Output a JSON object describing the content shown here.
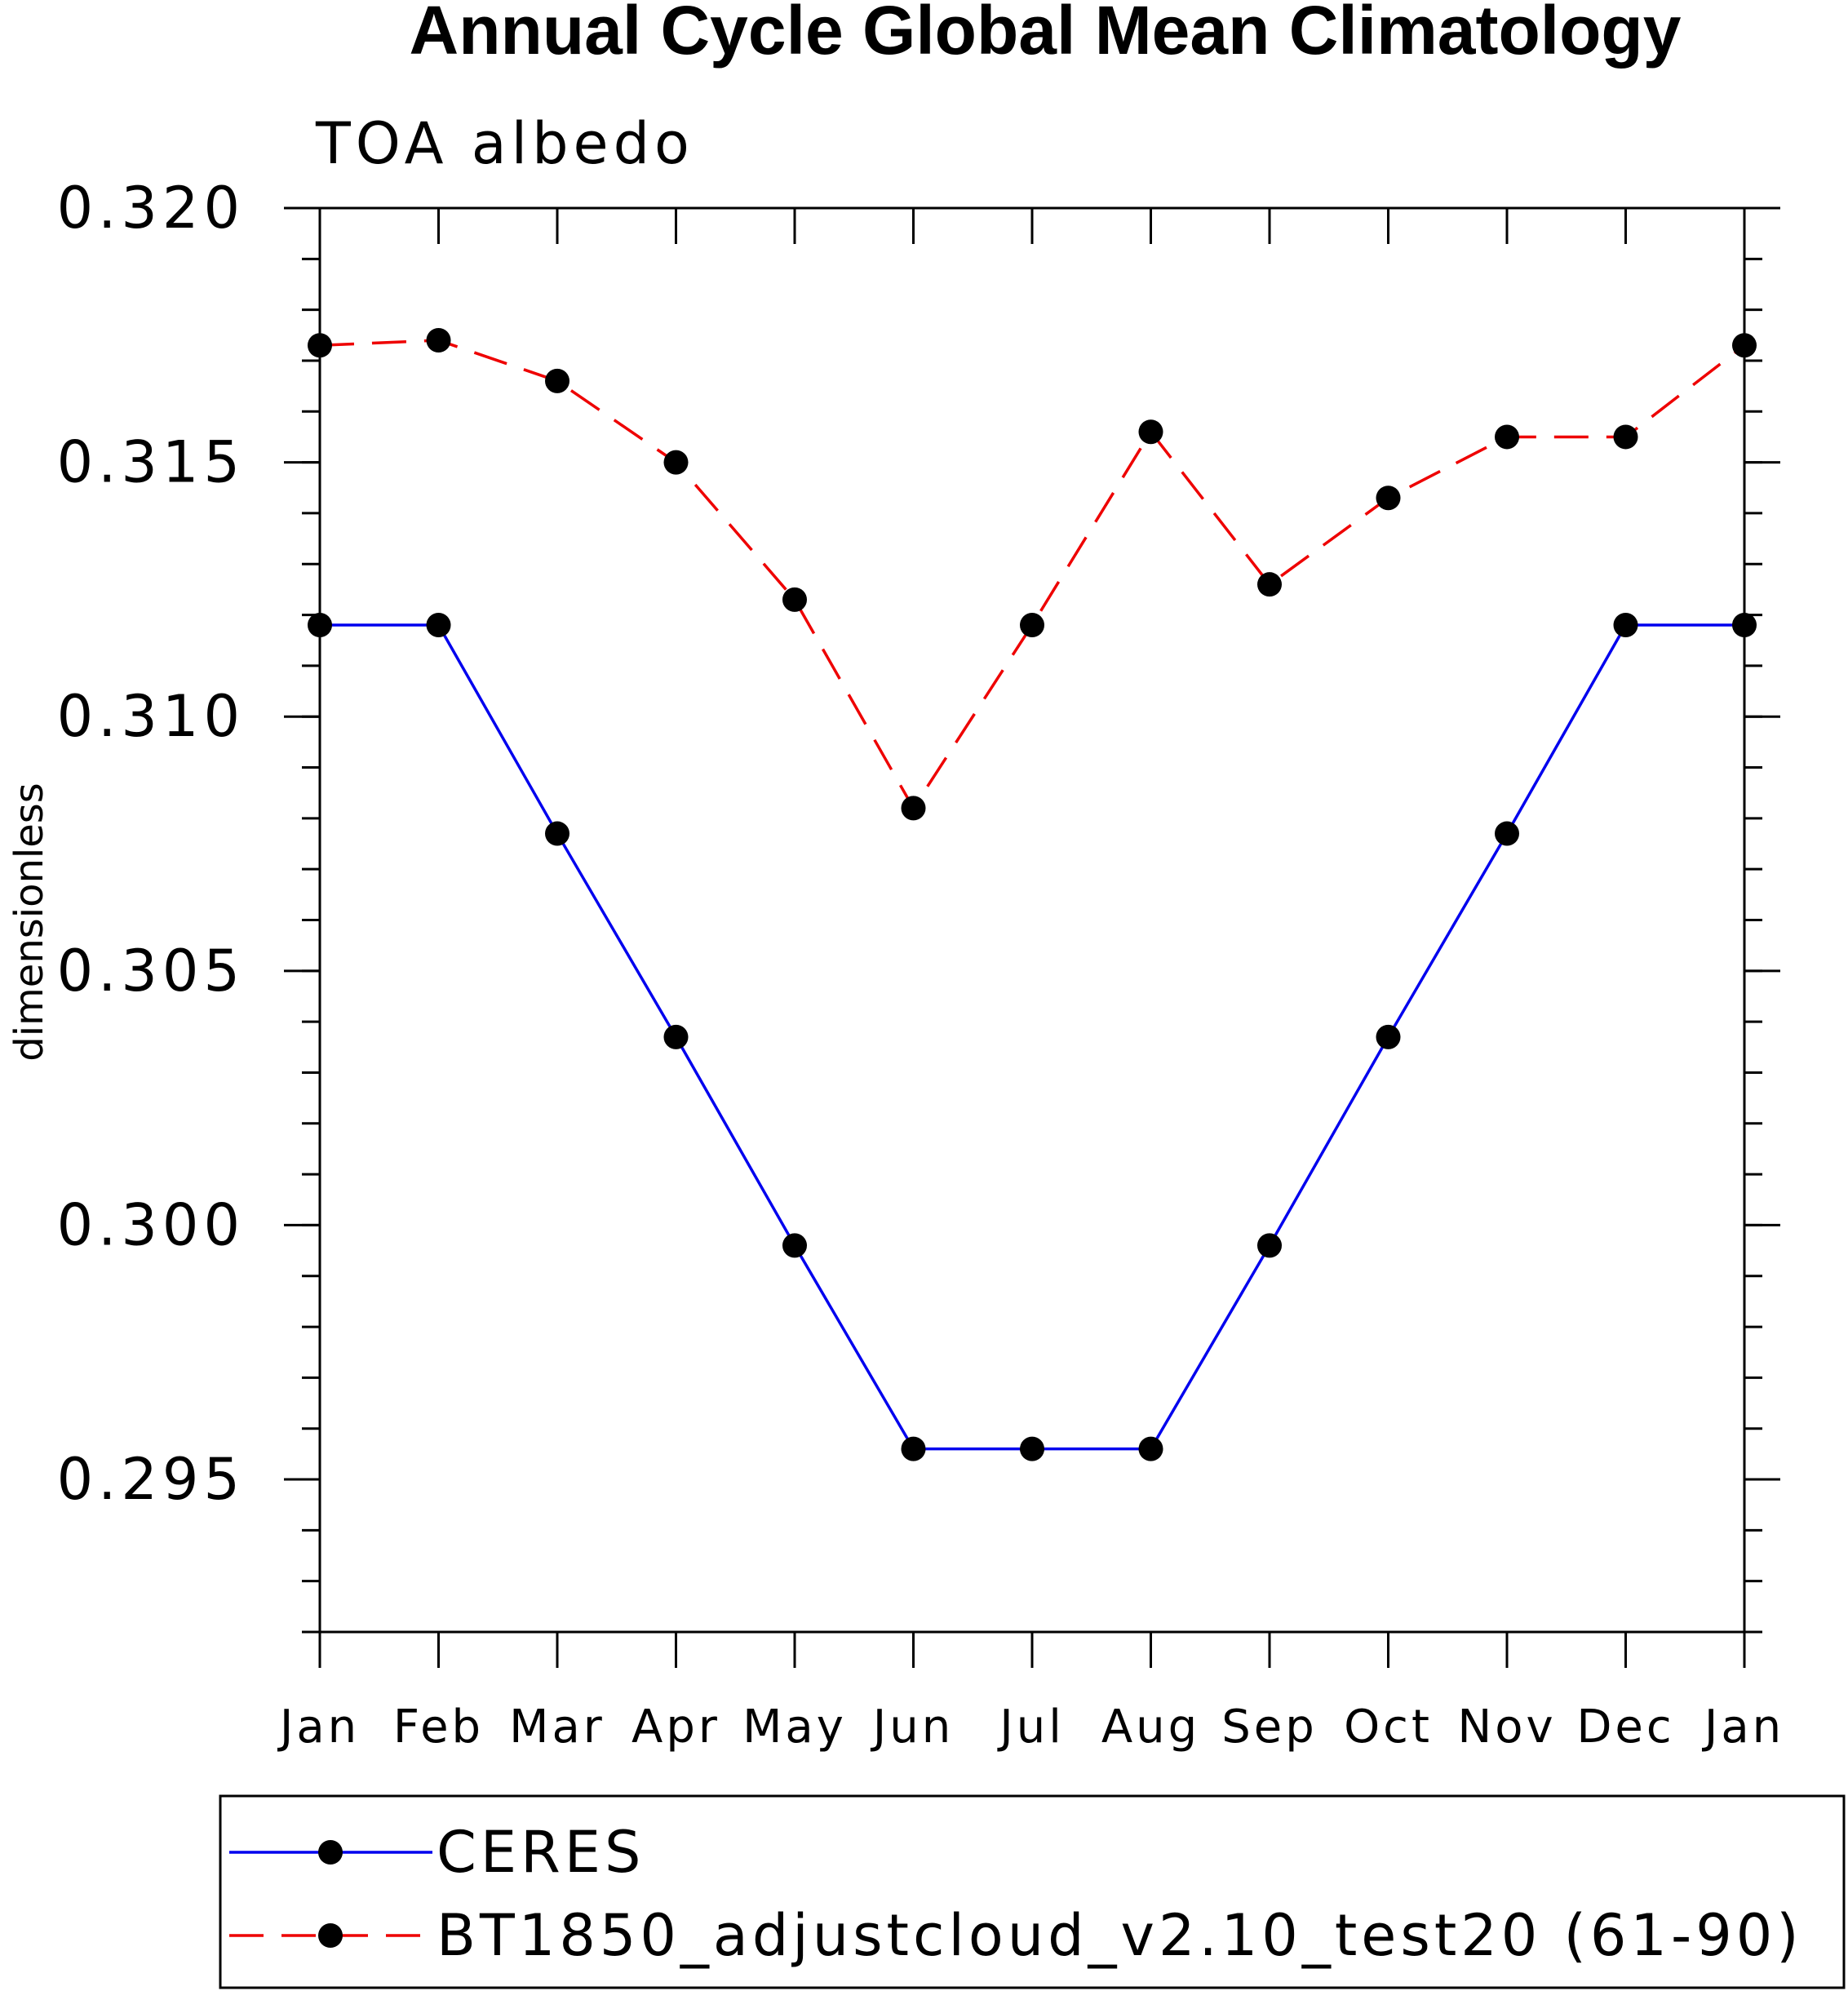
{
  "chart_data": {
    "type": "line",
    "title": "Annual Cycle Global Mean Climatology",
    "subtitle": "TOA albedo",
    "ylabel": "dimensionless",
    "xlabel": "",
    "categories": [
      "Jan",
      "Feb",
      "Mar",
      "Apr",
      "May",
      "Jun",
      "Jul",
      "Aug",
      "Sep",
      "Oct",
      "Nov",
      "Dec",
      "Jan"
    ],
    "ylim": [
      0.292,
      0.32
    ],
    "yticks": [
      0.295,
      0.3,
      0.305,
      0.31,
      0.315,
      0.32
    ],
    "ytick_labels": [
      "0.295",
      "0.300",
      "0.305",
      "0.310",
      "0.315",
      "0.320"
    ],
    "y_minor_step": 0.001,
    "grid": false,
    "legend_position": "bottom",
    "series": [
      {
        "name": "CERES",
        "color": "#0000ee",
        "line_style": "solid",
        "values": [
          0.3118,
          0.3118,
          0.3077,
          0.3037,
          0.2996,
          0.2956,
          0.2956,
          0.2956,
          0.2996,
          0.3037,
          0.3077,
          0.3118,
          0.3118
        ]
      },
      {
        "name": "BT1850_adjustcloud_v2.10_test20 (61-90)",
        "color": "#ee0000",
        "line_style": "dashed",
        "values": [
          0.3173,
          0.3174,
          0.3166,
          0.315,
          0.3123,
          0.3082,
          0.3118,
          0.3156,
          0.3126,
          0.3143,
          0.3155,
          0.3155,
          0.3173
        ]
      }
    ]
  }
}
